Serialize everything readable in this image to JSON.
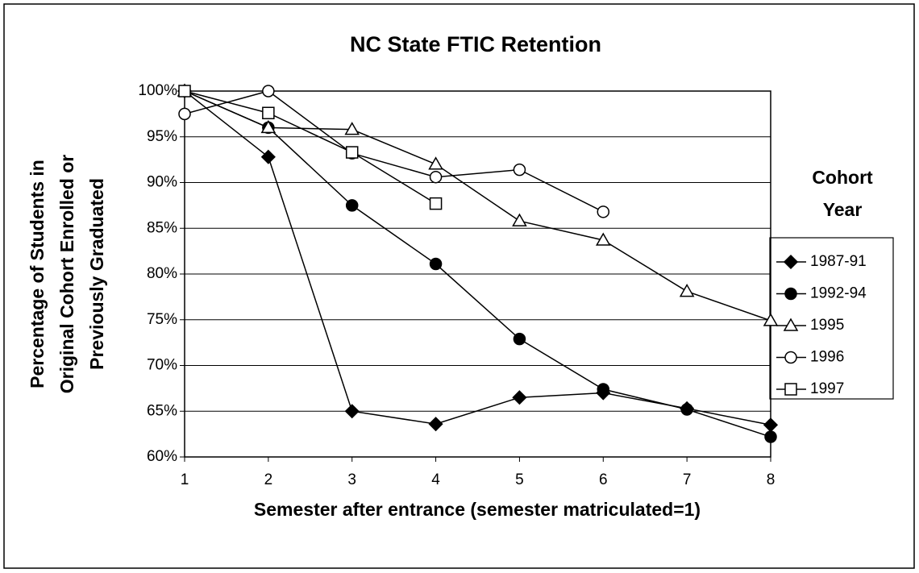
{
  "chart_data": {
    "type": "line",
    "title": "NC State FTIC Retention",
    "xlabel": "Semester after entrance (semester matriculated=1)",
    "ylabel": [
      "Percentage of Students in",
      "Original Cohort Enrolled or",
      "Previously Graduated"
    ],
    "legend_title": "Cohort Year",
    "legend": "right",
    "grid": true,
    "x": [
      1,
      2,
      3,
      4,
      5,
      6,
      7,
      8
    ],
    "xlim": [
      1,
      8
    ],
    "xticks": [
      1,
      2,
      3,
      4,
      5,
      6,
      7,
      8
    ],
    "ylim": [
      60,
      100
    ],
    "yticks": [
      {
        "value": 60,
        "label": "60%"
      },
      {
        "value": 65,
        "label": "65%"
      },
      {
        "value": 70,
        "label": "70%"
      },
      {
        "value": 75,
        "label": "75%"
      },
      {
        "value": 80,
        "label": "80%"
      },
      {
        "value": 85,
        "label": "85%"
      },
      {
        "value": 90,
        "label": "90%"
      },
      {
        "value": 95,
        "label": "95%"
      },
      {
        "value": 100,
        "label": "100%"
      }
    ],
    "series": [
      {
        "name": "1987-91",
        "color": "#000000",
        "marker": "diamond-filled",
        "values": [
          100,
          92.8,
          65.0,
          63.6,
          66.5,
          67.0,
          65.3,
          63.5
        ]
      },
      {
        "name": "1992-94",
        "color": "#000000",
        "marker": "circle-filled",
        "values": [
          100,
          96.0,
          87.5,
          81.1,
          72.9,
          67.4,
          65.2,
          62.2
        ]
      },
      {
        "name": "1995",
        "color": "#000000",
        "marker": "triangle-open",
        "values": [
          100,
          96.0,
          95.8,
          92.0,
          85.8,
          83.7,
          78.1,
          74.9
        ]
      },
      {
        "name": "1996",
        "color": "#000000",
        "marker": "circle-open",
        "values": [
          97.5,
          100,
          93.2,
          90.6,
          91.4,
          86.8,
          null,
          null
        ]
      },
      {
        "name": "1997",
        "color": "#000000",
        "marker": "square-open",
        "values": [
          100,
          97.6,
          93.3,
          87.7,
          null,
          null,
          null,
          null
        ]
      }
    ]
  }
}
